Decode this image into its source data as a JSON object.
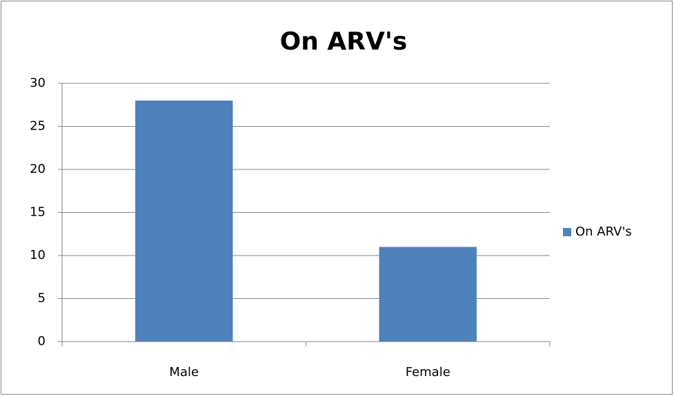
{
  "chart_data": {
    "type": "bar",
    "title": "On ARV's",
    "categories": [
      "Male",
      "Female"
    ],
    "series": [
      {
        "name": "On ARV's",
        "color": "#4f81bd",
        "values": [
          28,
          11
        ]
      }
    ],
    "ylim": [
      0,
      30
    ],
    "yticks": [
      0,
      5,
      10,
      15,
      20,
      25,
      30
    ],
    "grid": true,
    "legend": "right"
  }
}
